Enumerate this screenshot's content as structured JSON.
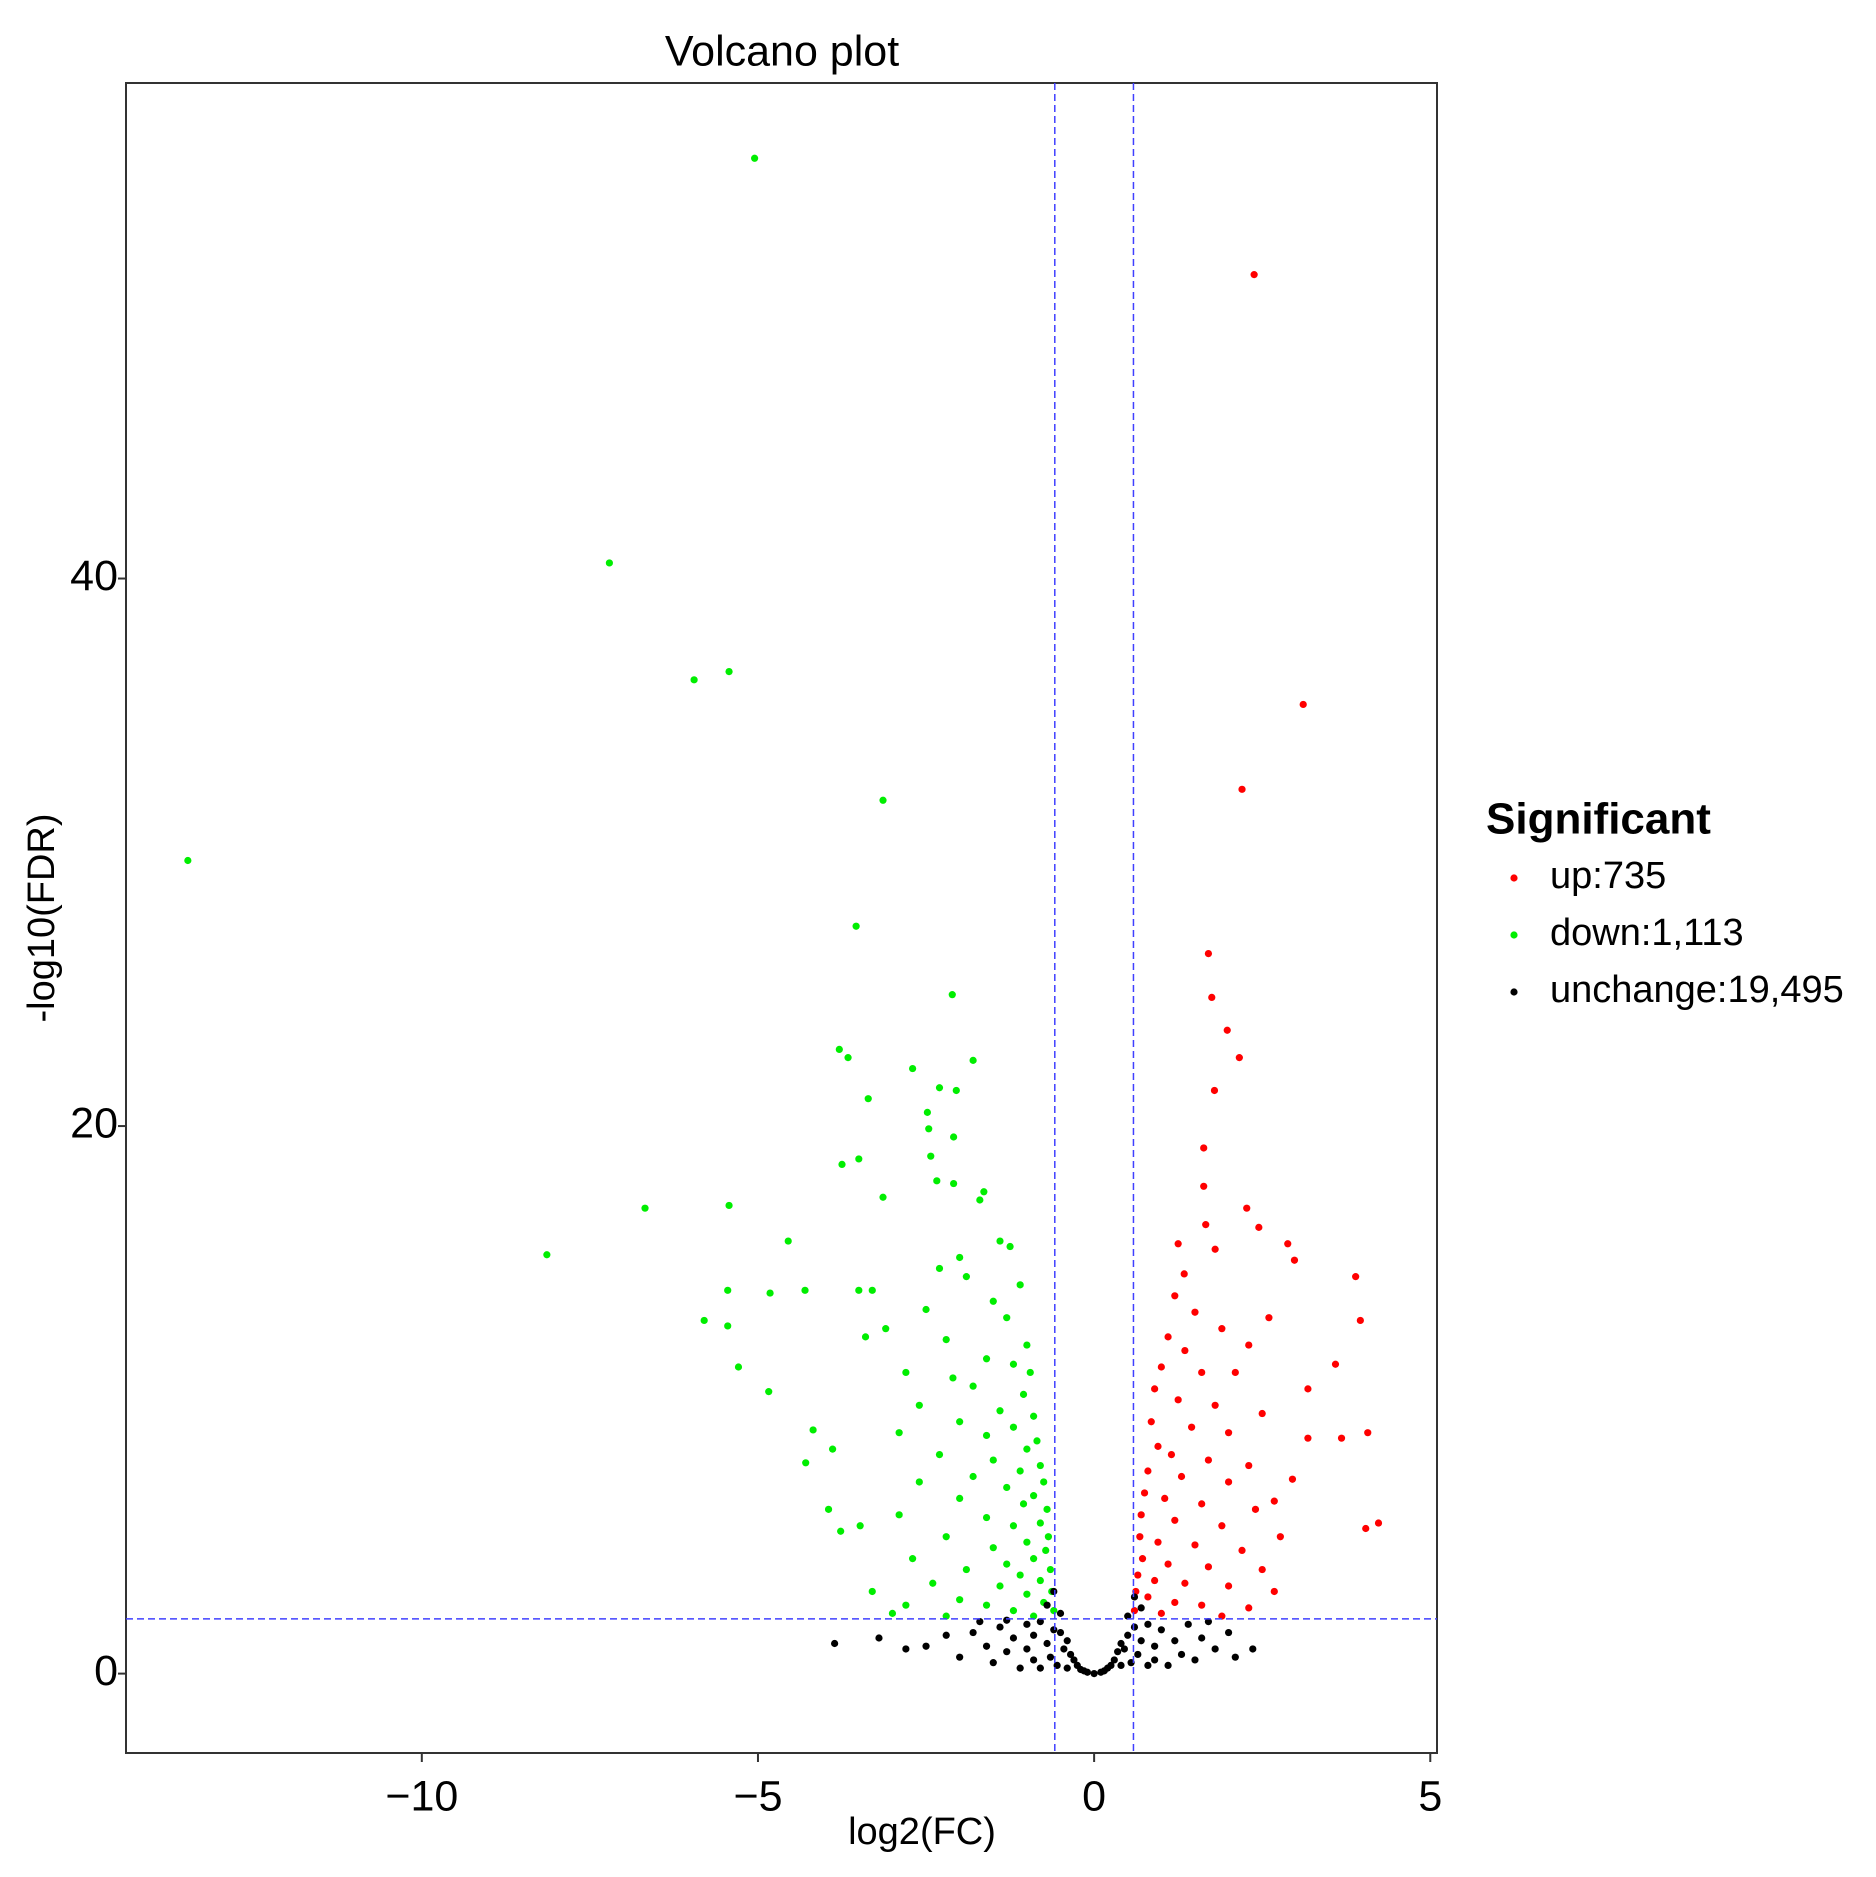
{
  "chart_data": {
    "type": "scatter",
    "title": "Volcano plot",
    "x_label": "log2(FC)",
    "y_label": "-log10(FDR)",
    "xlim": [
      -14.4,
      5.1
    ],
    "ylim": [
      -2.9,
      58.1
    ],
    "xticks": [
      {
        "value": -10,
        "label": "−10"
      },
      {
        "value": -5,
        "label": "−5"
      },
      0,
      5
    ],
    "yticks": [
      0,
      20,
      40
    ],
    "threshold_x": [
      -0.585,
      0.585
    ],
    "threshold_y": 2,
    "threshold_color": "#4040ff",
    "legend_title": "Significant",
    "legend_position": "right",
    "series": [
      {
        "name": "up:735",
        "color": "#ff0000",
        "x": [
          2.38,
          3.11,
          2.2,
          1.7,
          1.75,
          1.98,
          2.16,
          1.79,
          1.63,
          1.63,
          1.66,
          2.27,
          2.45,
          2.88,
          2.98,
          3.89,
          3.96,
          3.59,
          3.18,
          4.07,
          3.68,
          3.18,
          4.23,
          4.04,
          2.95,
          2.68,
          2.77,
          2.68,
          1.25,
          1.34,
          1.8,
          1.2,
          1.5,
          2.6,
          1.1,
          1.9,
          1.35,
          2.3,
          1.0,
          1.6,
          2.1,
          0.9,
          1.25,
          1.8,
          2.5,
          0.85,
          1.45,
          2.0,
          0.95,
          1.15,
          1.7,
          2.3,
          0.8,
          1.3,
          2.0,
          0.75,
          1.05,
          1.6,
          2.4,
          0.7,
          1.2,
          1.9,
          0.68,
          0.95,
          1.5,
          2.2,
          0.72,
          1.1,
          1.7,
          2.5,
          0.65,
          0.9,
          1.35,
          2.0,
          0.62,
          0.8,
          1.2,
          1.6,
          2.3,
          0.6,
          1.0,
          1.9
        ],
        "values": [
          51.1,
          35.4,
          32.3,
          26.3,
          24.7,
          23.5,
          22.5,
          21.3,
          19.2,
          17.8,
          16.4,
          17.0,
          16.3,
          15.7,
          15.1,
          14.5,
          12.9,
          11.3,
          10.4,
          8.8,
          8.6,
          8.6,
          5.5,
          5.3,
          7.1,
          6.3,
          5.0,
          3.0,
          15.7,
          14.6,
          15.5,
          13.8,
          13.2,
          13.0,
          12.3,
          12.6,
          11.8,
          12.0,
          11.2,
          11.0,
          11.0,
          10.4,
          10.0,
          9.8,
          9.5,
          9.2,
          9.0,
          8.8,
          8.3,
          8.0,
          7.8,
          7.6,
          7.4,
          7.2,
          7.0,
          6.6,
          6.4,
          6.2,
          6.0,
          5.8,
          5.6,
          5.4,
          5.0,
          4.8,
          4.7,
          4.5,
          4.2,
          4.0,
          3.9,
          3.8,
          3.6,
          3.4,
          3.3,
          3.2,
          3.0,
          2.8,
          2.6,
          2.5,
          2.4,
          2.3,
          2.2,
          2.1
        ]
      },
      {
        "name": "down:1,113",
        "color": "#00ee00",
        "x": [
          -5.05,
          -7.21,
          -5.95,
          -5.43,
          -3.14,
          -13.48,
          -3.54,
          -2.11,
          -3.79,
          -3.66,
          -1.8,
          -2.7,
          -3.36,
          -2.3,
          -2.05,
          -2.48,
          -2.46,
          -2.09,
          -3.5,
          -3.75,
          -2.43,
          -2.34,
          -2.09,
          -1.64,
          -1.7,
          -3.14,
          -5.43,
          -6.68,
          -4.55,
          -8.14,
          -5.45,
          -4.82,
          -4.3,
          -5.8,
          -5.45,
          -5.29,
          -4.84,
          -4.18,
          -3.89,
          -4.29,
          -3.95,
          -3.48,
          -3.77,
          -1.4,
          -1.25,
          -2.0,
          -2.3,
          -1.9,
          -1.1,
          -3.3,
          -3.5,
          -2.5,
          -1.5,
          -1.3,
          -3.1,
          -3.4,
          -2.2,
          -1.0,
          -1.6,
          -1.2,
          -0.95,
          -2.8,
          -2.1,
          -1.8,
          -1.05,
          -2.6,
          -1.4,
          -0.9,
          -2.0,
          -1.2,
          -1.6,
          -2.9,
          -0.85,
          -1.0,
          -2.3,
          -1.5,
          -0.8,
          -1.1,
          -1.8,
          -2.6,
          -0.75,
          -1.3,
          -0.9,
          -2.0,
          -1.05,
          -0.7,
          -2.9,
          -1.6,
          -0.8,
          -1.2,
          -0.68,
          -2.2,
          -1.0,
          -1.5,
          -0.72,
          -0.9,
          -2.7,
          -1.3,
          -0.65,
          -1.9,
          -1.1,
          -0.8,
          -2.4,
          -1.4,
          -0.63,
          -3.3,
          -1.0,
          -2.0,
          -0.75,
          -1.6,
          -2.8,
          -1.2,
          -0.6,
          -3.0,
          -0.9,
          -2.2
        ],
        "values": [
          55.35,
          40.57,
          36.3,
          36.6,
          31.9,
          29.7,
          27.3,
          24.8,
          22.8,
          22.5,
          22.4,
          22.1,
          21.0,
          21.4,
          21.3,
          20.5,
          19.9,
          19.6,
          18.8,
          18.6,
          18.9,
          18.0,
          17.9,
          17.6,
          17.3,
          17.4,
          17.1,
          17.0,
          15.8,
          15.3,
          14.0,
          13.9,
          14.0,
          12.9,
          12.7,
          11.2,
          10.3,
          8.9,
          8.2,
          7.7,
          6.0,
          5.4,
          5.2,
          15.8,
          15.6,
          15.2,
          14.8,
          14.5,
          14.2,
          14.0,
          14.0,
          13.3,
          13.6,
          13.0,
          12.6,
          12.3,
          12.2,
          12.0,
          11.5,
          11.3,
          11.0,
          11.0,
          10.8,
          10.5,
          10.2,
          9.8,
          9.6,
          9.4,
          9.2,
          9.0,
          8.7,
          8.8,
          8.5,
          8.2,
          8.0,
          7.8,
          7.6,
          7.4,
          7.2,
          7.0,
          7.0,
          6.8,
          6.5,
          6.4,
          6.2,
          6.0,
          5.8,
          5.7,
          5.5,
          5.4,
          5.0,
          5.0,
          4.8,
          4.6,
          4.5,
          4.2,
          4.2,
          4.0,
          3.8,
          3.8,
          3.6,
          3.4,
          3.3,
          3.2,
          3.0,
          3.0,
          2.9,
          2.7,
          2.6,
          2.5,
          2.5,
          2.3,
          2.3,
          2.2,
          2.1,
          2.1
        ]
      },
      {
        "name": "unchange:19,495",
        "color": "#000000",
        "x": [
          -3.86,
          2.36,
          -2.5,
          -2.2,
          -2.0,
          -1.8,
          -1.6,
          -1.5,
          -1.4,
          -1.3,
          -1.2,
          -1.1,
          -1.0,
          -1.0,
          -0.9,
          -0.9,
          -0.8,
          -0.8,
          -0.7,
          -0.7,
          -0.65,
          -0.6,
          -0.6,
          -0.55,
          -0.5,
          -0.5,
          -0.45,
          -0.4,
          -0.4,
          -0.35,
          -0.3,
          -0.25,
          -0.2,
          -0.15,
          -0.1,
          0.0,
          0.1,
          0.15,
          0.2,
          0.25,
          0.3,
          0.35,
          0.4,
          0.4,
          0.45,
          0.5,
          0.5,
          0.55,
          0.6,
          0.6,
          0.65,
          0.7,
          0.7,
          0.8,
          0.8,
          0.9,
          0.9,
          1.0,
          1.1,
          1.2,
          1.3,
          1.4,
          1.5,
          1.6,
          1.8,
          2.0,
          2.1,
          -2.8,
          -3.2,
          1.7,
          -1.7,
          -1.3
        ],
        "values": [
          1.1,
          0.9,
          1.0,
          1.4,
          0.6,
          1.5,
          1.0,
          0.4,
          1.7,
          0.8,
          1.3,
          0.2,
          1.8,
          0.9,
          0.5,
          1.4,
          1.9,
          0.2,
          1.1,
          2.5,
          0.6,
          1.6,
          3.0,
          0.3,
          1.5,
          2.2,
          0.9,
          1.2,
          0.2,
          0.7,
          0.5,
          0.3,
          0.15,
          0.1,
          0.05,
          0.0,
          0.05,
          0.1,
          0.2,
          0.3,
          0.5,
          0.8,
          1.1,
          0.3,
          0.9,
          1.4,
          2.1,
          0.4,
          1.7,
          2.8,
          0.7,
          1.2,
          2.4,
          0.3,
          1.8,
          1.0,
          0.5,
          1.6,
          0.3,
          1.2,
          0.7,
          1.8,
          0.5,
          1.3,
          0.9,
          1.5,
          0.6,
          0.9,
          1.3,
          1.9,
          1.9,
          1.95
        ]
      }
    ]
  }
}
